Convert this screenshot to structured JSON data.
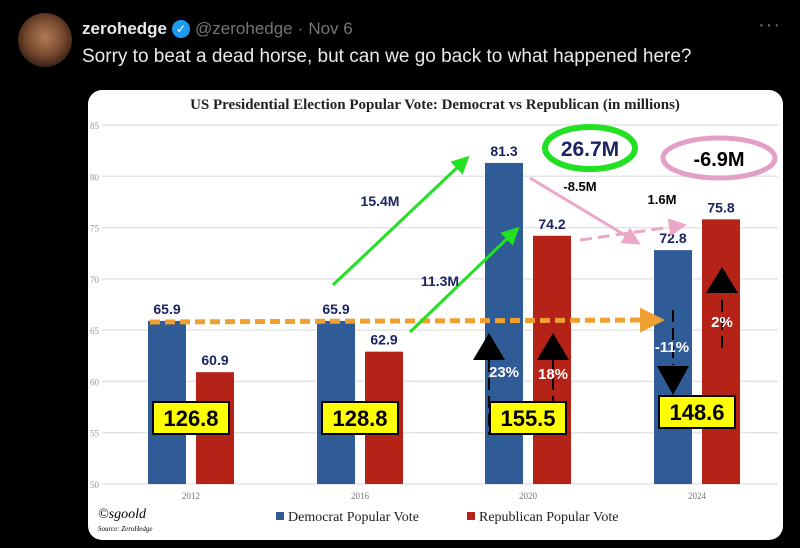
{
  "tweet": {
    "name": "zerohedge",
    "verified_icon": "verified-badge-icon",
    "handle": "@zerohedge",
    "separator": "·",
    "date": "Nov 6",
    "more": "···",
    "text": "Sorry to beat a dead horse, but can we go back to what happened here?"
  },
  "chart_data": {
    "type": "bar",
    "title": "US Presidential Election Popular Vote: Democrat vs Republican (in millions)",
    "categories": [
      "2012",
      "2016",
      "2020",
      "2024"
    ],
    "ylim": [
      50,
      85
    ],
    "yticks": [
      "50",
      "55",
      "60",
      "65",
      "70",
      "75",
      "80",
      "85"
    ],
    "grid": true,
    "legend_position": "bottom",
    "series": [
      {
        "name": "Democrat Popular Vote",
        "color": "#2f5c96",
        "values": [
          65.9,
          65.9,
          81.3,
          72.8
        ],
        "labels": [
          "65.9",
          "65.9",
          "81.3",
          "72.8"
        ]
      },
      {
        "name": "Republican Popular Vote",
        "color": "#b52218",
        "values": [
          60.9,
          62.9,
          74.2,
          75.8
        ],
        "labels": [
          "60.9",
          "62.9",
          "74.2",
          "75.8"
        ]
      }
    ],
    "totals": [
      "126.8",
      "128.8",
      "155.5",
      "148.6"
    ],
    "annotations": {
      "dem_gain_2020": "15.4M",
      "rep_gain_2020": "11.3M",
      "total_gain_2020": "26.7M",
      "dem_change_2024": "-8.5M",
      "rep_change_2024": "1.6M",
      "total_change_2024": "-6.9M",
      "dem_pct_2020": "23%",
      "rep_pct_2020": "18%",
      "dem_pct_2024": "-11%",
      "rep_pct_2024": "2%"
    },
    "credit": "©sgoold",
    "source": "Source: ZeroHedge"
  }
}
